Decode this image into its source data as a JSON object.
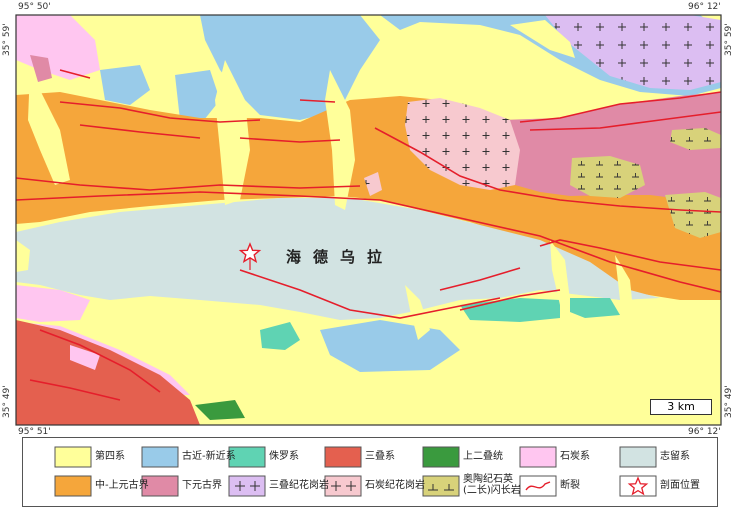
{
  "map": {
    "place_label": "海德乌拉",
    "scale": "3 km",
    "coords": {
      "top_left_lon": "95° 50'",
      "top_right_lon": "96° 12'",
      "bottom_left_lon": "95° 51'",
      "bottom_right_lon": "96° 12'",
      "left_top_lat": "35° 59'",
      "right_top_lat": "35° 59'",
      "left_bottom_lat": "35° 49'",
      "right_bottom_lat": "35° 49'"
    },
    "colors": {
      "quaternary": "#ffff9a",
      "paleogene_neogene": "#99cbe9",
      "jurassic": "#5fd3b3",
      "triassic": "#e4604f",
      "upper_permian": "#3a9a3e",
      "carboniferous": "#ffc6f0",
      "silurian": "#d2e3e2",
      "meso_neoproterozoic": "#f5a63b",
      "paleoproterozoic": "#e08aa6",
      "triassic_granite": "#dcbef2",
      "carboniferous_granite": "#f7c9cf",
      "ordovician_tonalite": "#d8d27a",
      "fault": "#e51e2b",
      "section_star": "#e51e2b"
    }
  },
  "legend": [
    {
      "label": "第四系",
      "key": "quaternary"
    },
    {
      "label": "古近-新近系",
      "key": "paleogene_neogene"
    },
    {
      "label": "侏罗系",
      "key": "jurassic"
    },
    {
      "label": "三叠系",
      "key": "triassic"
    },
    {
      "label": "上二叠统",
      "key": "upper_permian"
    },
    {
      "label": "石炭系",
      "key": "carboniferous"
    },
    {
      "label": "志留系",
      "key": "silurian"
    },
    {
      "label": "中-上元古界",
      "key": "meso_neoproterozoic"
    },
    {
      "label": "下元古界",
      "key": "paleoproterozoic"
    },
    {
      "label": "三叠纪花岗岩",
      "key": "triassic_granite"
    },
    {
      "label": "石炭纪花岗岩",
      "key": "carboniferous_granite"
    },
    {
      "label": "奥陶纪石英\n(二长)闪长岩",
      "key": "ordovician_tonalite"
    },
    {
      "label": "断裂",
      "key": "fault"
    },
    {
      "label": "剖面位置",
      "key": "section_star"
    }
  ]
}
